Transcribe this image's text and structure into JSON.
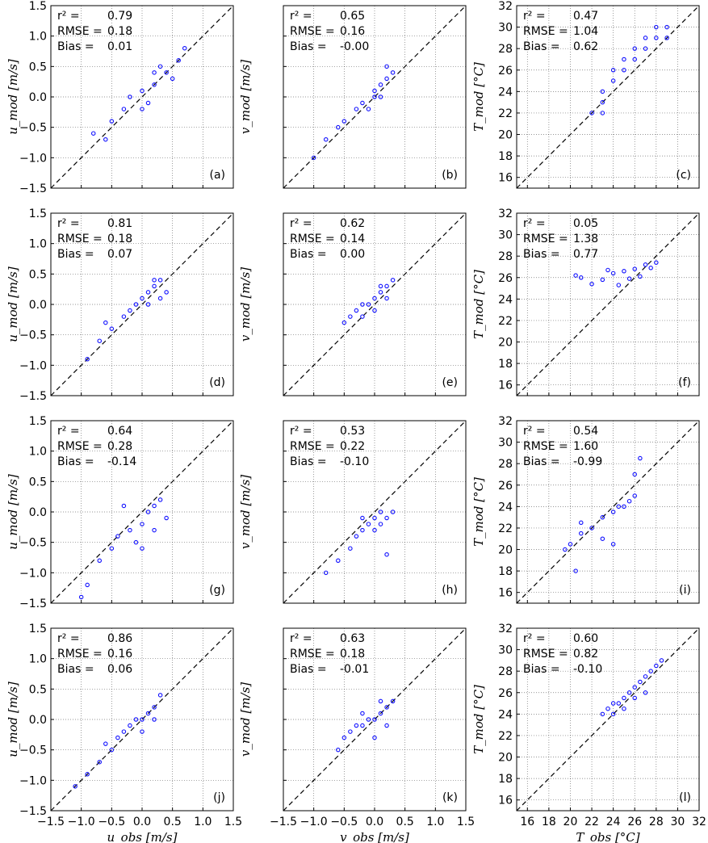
{
  "chart_data": [
    {
      "panel": "(a)",
      "type": "scatter",
      "xlabel": "",
      "ylabel": "u_mod [m/s]",
      "xlim": [
        -1.5,
        1.5
      ],
      "ylim": [
        -1.5,
        1.5
      ],
      "xticks": [],
      "yticks": [
        "−1.5",
        "−1.0",
        "−0.5",
        "0.0",
        "0.5",
        "1.0",
        "1.5"
      ],
      "stats": {
        "r2_label": "r² =",
        "r2": "0.79",
        "rmse_label": "RMSE =",
        "rmse": "0.18",
        "bias_label": "Bias =",
        "bias": "0.01"
      },
      "points": [
        [
          -0.5,
          -0.4
        ],
        [
          -0.3,
          -0.2
        ],
        [
          0.0,
          0.1
        ],
        [
          0.2,
          0.2
        ],
        [
          0.4,
          0.4
        ],
        [
          0.6,
          0.6
        ],
        [
          -0.8,
          -0.6
        ],
        [
          0.1,
          -0.1
        ],
        [
          0.3,
          0.5
        ],
        [
          -0.2,
          0.0
        ],
        [
          0.5,
          0.3
        ],
        [
          0.7,
          0.8
        ],
        [
          -0.6,
          -0.7
        ],
        [
          0.0,
          -0.2
        ],
        [
          0.2,
          0.4
        ]
      ]
    },
    {
      "panel": "(b)",
      "type": "scatter",
      "xlabel": "",
      "ylabel": "v_mod [m/s]",
      "xlim": [
        -1.5,
        1.5
      ],
      "ylim": [
        -1.5,
        1.5
      ],
      "xticks": [],
      "yticks": [],
      "stats": {
        "r2_label": "r² =",
        "r2": "0.65",
        "rmse_label": "RMSE =",
        "rmse": "0.16",
        "bias_label": "Bias =",
        "bias": "-0.00"
      },
      "points": [
        [
          -1.0,
          -1.0
        ],
        [
          -0.8,
          -0.7
        ],
        [
          -0.5,
          -0.4
        ],
        [
          -0.2,
          -0.1
        ],
        [
          0.0,
          0.1
        ],
        [
          0.1,
          0.2
        ],
        [
          0.2,
          0.3
        ],
        [
          -0.1,
          -0.2
        ],
        [
          0.3,
          0.4
        ],
        [
          0.0,
          0.0
        ],
        [
          -0.3,
          -0.2
        ],
        [
          0.2,
          0.5
        ],
        [
          -0.6,
          -0.5
        ],
        [
          0.1,
          0.0
        ]
      ]
    },
    {
      "panel": "(c)",
      "type": "scatter",
      "xlabel": "",
      "ylabel": "T_mod [°C]",
      "xlim": [
        15,
        32
      ],
      "ylim": [
        15,
        32
      ],
      "xticks": [],
      "yticks": [
        "16",
        "18",
        "20",
        "22",
        "24",
        "26",
        "28",
        "30",
        "32"
      ],
      "stats": {
        "r2_label": "r² =",
        "r2": "0.47",
        "rmse_label": "RMSE =",
        "rmse": "1.04",
        "bias_label": "Bias =",
        "bias": "0.62"
      },
      "points": [
        [
          22,
          22
        ],
        [
          23,
          23
        ],
        [
          23,
          24
        ],
        [
          24,
          25
        ],
        [
          24,
          26
        ],
        [
          25,
          26
        ],
        [
          25,
          27
        ],
        [
          26,
          28
        ],
        [
          27,
          28
        ],
        [
          27,
          29
        ],
        [
          28,
          30
        ],
        [
          28,
          29
        ],
        [
          26,
          27
        ],
        [
          29,
          30
        ],
        [
          29,
          29
        ],
        [
          23,
          22
        ]
      ]
    },
    {
      "panel": "(d)",
      "type": "scatter",
      "xlabel": "",
      "ylabel": "u_mod [m/s]",
      "xlim": [
        -1.5,
        1.5
      ],
      "ylim": [
        -1.5,
        1.5
      ],
      "xticks": [],
      "yticks": [
        "−1.5",
        "−1.0",
        "−0.5",
        "0.0",
        "0.5",
        "1.0",
        "1.5"
      ],
      "stats": {
        "r2_label": "r² =",
        "r2": "0.81",
        "rmse_label": "RMSE =",
        "rmse": "0.18",
        "bias_label": "Bias =",
        "bias": "0.07"
      },
      "points": [
        [
          -0.9,
          -0.9
        ],
        [
          -0.7,
          -0.6
        ],
        [
          -0.5,
          -0.4
        ],
        [
          -0.3,
          -0.2
        ],
        [
          -0.1,
          0.0
        ],
        [
          0.0,
          0.1
        ],
        [
          0.1,
          0.2
        ],
        [
          0.2,
          0.3
        ],
        [
          0.3,
          0.4
        ],
        [
          0.4,
          0.2
        ],
        [
          -0.2,
          -0.1
        ],
        [
          0.1,
          0.0
        ],
        [
          -0.6,
          -0.3
        ],
        [
          0.2,
          0.4
        ],
        [
          0.3,
          0.1
        ]
      ]
    },
    {
      "panel": "(e)",
      "type": "scatter",
      "xlabel": "",
      "ylabel": "v_mod [m/s]",
      "xlim": [
        -1.5,
        1.5
      ],
      "ylim": [
        -1.5,
        1.5
      ],
      "xticks": [],
      "yticks": [],
      "stats": {
        "r2_label": "r² =",
        "r2": "0.62",
        "rmse_label": "RMSE =",
        "rmse": "0.14",
        "bias_label": "Bias =",
        "bias": "0.00"
      },
      "points": [
        [
          -0.5,
          -0.3
        ],
        [
          -0.4,
          -0.2
        ],
        [
          -0.3,
          -0.1
        ],
        [
          -0.2,
          0.0
        ],
        [
          -0.1,
          0.0
        ],
        [
          0.0,
          0.1
        ],
        [
          0.1,
          0.2
        ],
        [
          0.2,
          0.3
        ],
        [
          0.3,
          0.4
        ],
        [
          0.0,
          -0.1
        ],
        [
          -0.2,
          -0.2
        ],
        [
          0.2,
          0.1
        ],
        [
          0.1,
          0.3
        ]
      ]
    },
    {
      "panel": "(f)",
      "type": "scatter",
      "xlabel": "",
      "ylabel": "T_mod [°C]",
      "xlim": [
        15,
        32
      ],
      "ylim": [
        15,
        32
      ],
      "xticks": [],
      "yticks": [
        "16",
        "18",
        "20",
        "22",
        "24",
        "26",
        "28",
        "30",
        "32"
      ],
      "stats": {
        "r2_label": "r² =",
        "r2": "0.05",
        "rmse_label": "RMSE =",
        "rmse": "1.38",
        "bias_label": "Bias =",
        "bias": "0.77"
      },
      "points": [
        [
          20.5,
          26.2
        ],
        [
          21,
          26
        ],
        [
          22,
          25.4
        ],
        [
          23,
          25.8
        ],
        [
          24,
          26.4
        ],
        [
          25,
          26.6
        ],
        [
          26,
          26.8
        ],
        [
          27,
          27.2
        ],
        [
          28,
          27.4
        ],
        [
          27.5,
          26.9
        ],
        [
          26.5,
          26.1
        ],
        [
          24.5,
          25.3
        ],
        [
          23.5,
          26.7
        ],
        [
          25.5,
          25.9
        ]
      ]
    },
    {
      "panel": "(g)",
      "type": "scatter",
      "xlabel": "",
      "ylabel": "u_mod [m/s]",
      "xlim": [
        -1.5,
        1.5
      ],
      "ylim": [
        -1.5,
        1.5
      ],
      "xticks": [],
      "yticks": [
        "−1.5",
        "−1.0",
        "−0.5",
        "0.0",
        "0.5",
        "1.0",
        "1.5"
      ],
      "stats": {
        "r2_label": "r² =",
        "r2": "0.64",
        "rmse_label": "RMSE =",
        "rmse": "0.28",
        "bias_label": "Bias =",
        "bias": "-0.14"
      },
      "points": [
        [
          -1.0,
          -1.4
        ],
        [
          -0.9,
          -1.2
        ],
        [
          -0.7,
          -0.8
        ],
        [
          -0.5,
          -0.6
        ],
        [
          -0.4,
          -0.4
        ],
        [
          -0.2,
          -0.3
        ],
        [
          0.0,
          -0.2
        ],
        [
          0.1,
          0.0
        ],
        [
          0.2,
          0.1
        ],
        [
          0.3,
          0.2
        ],
        [
          -0.1,
          -0.5
        ],
        [
          0.0,
          -0.6
        ],
        [
          -0.3,
          0.1
        ],
        [
          0.2,
          -0.3
        ],
        [
          0.4,
          -0.1
        ]
      ]
    },
    {
      "panel": "(h)",
      "type": "scatter",
      "xlabel": "",
      "ylabel": "v_mod [m/s]",
      "xlim": [
        -1.5,
        1.5
      ],
      "ylim": [
        -1.5,
        1.5
      ],
      "xticks": [],
      "yticks": [],
      "stats": {
        "r2_label": "r² =",
        "r2": "0.53",
        "rmse_label": "RMSE =",
        "rmse": "0.22",
        "bias_label": "Bias =",
        "bias": "-0.10"
      },
      "points": [
        [
          -0.8,
          -1.0
        ],
        [
          -0.6,
          -0.8
        ],
        [
          -0.4,
          -0.6
        ],
        [
          -0.2,
          -0.3
        ],
        [
          -0.1,
          -0.2
        ],
        [
          0.0,
          -0.1
        ],
        [
          0.1,
          0.0
        ],
        [
          0.2,
          -0.1
        ],
        [
          0.3,
          0.0
        ],
        [
          0.0,
          -0.3
        ],
        [
          -0.2,
          -0.1
        ],
        [
          0.1,
          -0.2
        ],
        [
          0.2,
          -0.7
        ],
        [
          -0.3,
          -0.4
        ]
      ]
    },
    {
      "panel": "(i)",
      "type": "scatter",
      "xlabel": "",
      "ylabel": "T_mod [°C]",
      "xlim": [
        15,
        32
      ],
      "ylim": [
        15,
        32
      ],
      "xticks": [],
      "yticks": [
        "16",
        "18",
        "20",
        "22",
        "24",
        "26",
        "28",
        "30",
        "32"
      ],
      "stats": {
        "r2_label": "r² =",
        "r2": "0.54",
        "rmse_label": "RMSE =",
        "rmse": "1.60",
        "bias_label": "Bias =",
        "bias": "-0.99"
      },
      "points": [
        [
          19.5,
          20
        ],
        [
          20,
          20.5
        ],
        [
          21,
          21.5
        ],
        [
          22,
          22
        ],
        [
          23,
          23
        ],
        [
          24,
          23.5
        ],
        [
          24.5,
          24
        ],
        [
          25,
          24
        ],
        [
          25.5,
          24.5
        ],
        [
          26,
          25
        ],
        [
          26,
          27
        ],
        [
          26.5,
          28.5
        ],
        [
          23,
          21
        ],
        [
          24,
          20.5
        ],
        [
          21,
          22.5
        ],
        [
          20.5,
          18
        ]
      ]
    },
    {
      "panel": "(j)",
      "type": "scatter",
      "xlabel": "u_obs [m/s]",
      "xlim": [
        -1.5,
        1.5
      ],
      "ylim": [
        -1.5,
        1.5
      ],
      "xticks": [
        "−1.5",
        "−1.0",
        "−0.5",
        "0.0",
        "0.5",
        "1.0",
        "1.5"
      ],
      "yticks": [
        "−1.5",
        "−1.0",
        "−0.5",
        "0.0",
        "0.5",
        "1.0",
        "1.5"
      ],
      "ylabel": "u_mod [m/s]",
      "stats": {
        "r2_label": "r² =",
        "r2": "0.86",
        "rmse_label": "RMSE =",
        "rmse": "0.16",
        "bias_label": "Bias =",
        "bias": "0.06"
      },
      "points": [
        [
          -1.1,
          -1.1
        ],
        [
          -0.9,
          -0.9
        ],
        [
          -0.7,
          -0.7
        ],
        [
          -0.5,
          -0.5
        ],
        [
          -0.4,
          -0.3
        ],
        [
          -0.3,
          -0.2
        ],
        [
          -0.2,
          -0.1
        ],
        [
          -0.1,
          0.0
        ],
        [
          0.0,
          0.0
        ],
        [
          0.1,
          0.1
        ],
        [
          0.2,
          0.2
        ],
        [
          0.3,
          0.4
        ],
        [
          -0.6,
          -0.4
        ],
        [
          0.0,
          -0.2
        ],
        [
          0.2,
          0.0
        ]
      ]
    },
    {
      "panel": "(k)",
      "type": "scatter",
      "xlabel": "v_obs [m/s]",
      "xlim": [
        -1.5,
        1.5
      ],
      "ylim": [
        -1.5,
        1.5
      ],
      "xticks": [
        "−1.5",
        "−1.0",
        "−0.5",
        "0.0",
        "0.5",
        "1.0",
        "1.5"
      ],
      "yticks": [],
      "ylabel": "v_mod [m/s]",
      "stats": {
        "r2_label": "r² =",
        "r2": "0.63",
        "rmse_label": "RMSE =",
        "rmse": "0.18",
        "bias_label": "Bias =",
        "bias": "-0.01"
      },
      "points": [
        [
          -0.6,
          -0.5
        ],
        [
          -0.5,
          -0.3
        ],
        [
          -0.4,
          -0.2
        ],
        [
          -0.3,
          -0.1
        ],
        [
          -0.2,
          -0.1
        ],
        [
          -0.1,
          0.0
        ],
        [
          0.0,
          0.0
        ],
        [
          0.1,
          0.1
        ],
        [
          0.2,
          0.2
        ],
        [
          0.3,
          0.3
        ],
        [
          0.0,
          -0.3
        ],
        [
          -0.2,
          0.1
        ],
        [
          0.2,
          -0.1
        ],
        [
          0.1,
          0.3
        ]
      ]
    },
    {
      "panel": "(l)",
      "type": "scatter",
      "xlabel": "T_obs [°C]",
      "xlim": [
        15,
        32
      ],
      "ylim": [
        15,
        32
      ],
      "xticks": [
        "16",
        "18",
        "20",
        "22",
        "24",
        "26",
        "28",
        "30",
        "32"
      ],
      "yticks": [
        "16",
        "18",
        "20",
        "22",
        "24",
        "26",
        "28",
        "30",
        "32"
      ],
      "ylabel": "T_mod [°C]",
      "stats": {
        "r2_label": "r² =",
        "r2": "0.60",
        "rmse_label": "RMSE =",
        "rmse": "0.82",
        "bias_label": "Bias =",
        "bias": "-0.10"
      },
      "points": [
        [
          23,
          24
        ],
        [
          23.5,
          24.5
        ],
        [
          24,
          25
        ],
        [
          24.5,
          25
        ],
        [
          25,
          25.5
        ],
        [
          25.5,
          26
        ],
        [
          26,
          26.5
        ],
        [
          26.5,
          27
        ],
        [
          27,
          27.5
        ],
        [
          27.5,
          28
        ],
        [
          28,
          28.5
        ],
        [
          28.5,
          29
        ],
        [
          24,
          24
        ],
        [
          25,
          24.5
        ],
        [
          26,
          25.5
        ],
        [
          27,
          26
        ]
      ]
    }
  ]
}
